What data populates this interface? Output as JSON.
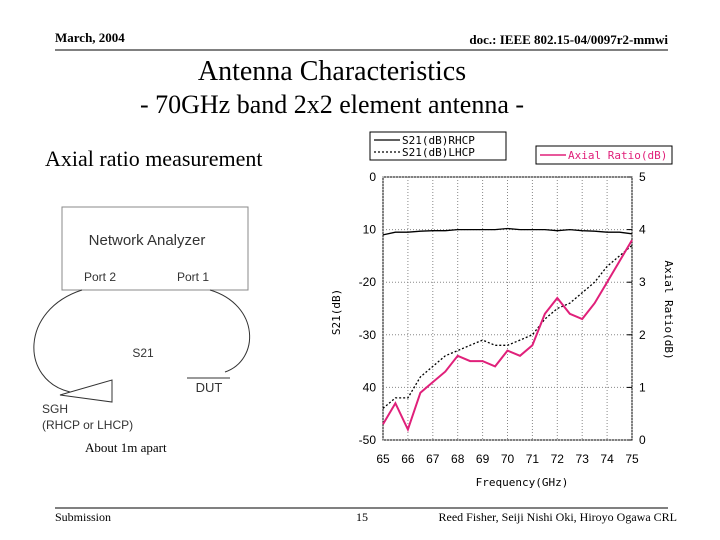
{
  "header": {
    "date": "March, 2004",
    "doc": "doc.: IEEE 802.15-04/0097r2-mmwi"
  },
  "title": "Antenna Characteristics",
  "subtitle": "- 70GHz band 2x2 element antenna -",
  "section": "Axial ratio measurement",
  "diagram": {
    "analyzer": "Network Analyzer",
    "port2": "Port 2",
    "port1": "Port 1",
    "s21": "S21",
    "dut": "DUT",
    "sgh": "SGH",
    "sgh_note": "(RHCP or LHCP)",
    "distance": "About 1m apart"
  },
  "footer": {
    "left": "Submission",
    "page": "15",
    "authors": "Reed Fisher, Seiji Nishi Oki, Hiroyo Ogawa CRL"
  },
  "chart_data": {
    "type": "line",
    "x_label": "Frequency(GHz)",
    "y_label": "S21(dB)",
    "y2_label": "Axial Ratio(dB)",
    "x": [
      65,
      65.5,
      66,
      66.5,
      67,
      67.5,
      68,
      68.5,
      69,
      69.5,
      70,
      70.5,
      71,
      71.5,
      72,
      72.5,
      73,
      73.5,
      74,
      74.5,
      75
    ],
    "xlim": [
      65,
      75
    ],
    "xticks": [
      65,
      66,
      67,
      68,
      69,
      70,
      71,
      72,
      73,
      74,
      75
    ],
    "ylim": [
      -50,
      0
    ],
    "yticks": [
      0,
      {
        "value": -10,
        "label": "10"
      },
      -20,
      -30,
      {
        "value": -40,
        "label": "40"
      },
      -50
    ],
    "y2lim": [
      0,
      5
    ],
    "y2ticks": [
      0,
      1,
      2,
      3,
      4,
      5
    ],
    "grid": true,
    "series": [
      {
        "name": "S21(dB)RHCP",
        "color": "#000000",
        "dash": "solid",
        "values": [
          -11,
          -10.5,
          -10.5,
          -10.3,
          -10.2,
          -10.2,
          -10,
          -10,
          -10,
          -10,
          -9.8,
          -10,
          -10,
          -10,
          -10.2,
          -10,
          -10.2,
          -10.3,
          -10.5,
          -10.5,
          -10.8
        ]
      },
      {
        "name": "S21(dB)LHCP",
        "color": "#000000",
        "dash": "dotted",
        "values": [
          -44,
          -42,
          -42,
          -38,
          -36,
          -34,
          -33,
          -32,
          -31,
          -32,
          -32,
          -31,
          -30,
          -27,
          -25,
          -24,
          -22,
          -20,
          -17,
          -15,
          -13
        ]
      },
      {
        "name": "Axial Ratio(dB)",
        "color": "#e0207a",
        "dash": "solid",
        "axis": "y2",
        "values": [
          0.3,
          0.7,
          0.2,
          0.9,
          1.1,
          1.3,
          1.6,
          1.5,
          1.5,
          1.4,
          1.7,
          1.6,
          1.8,
          2.4,
          2.7,
          2.4,
          2.3,
          2.6,
          3.0,
          3.4,
          3.8
        ]
      }
    ]
  }
}
